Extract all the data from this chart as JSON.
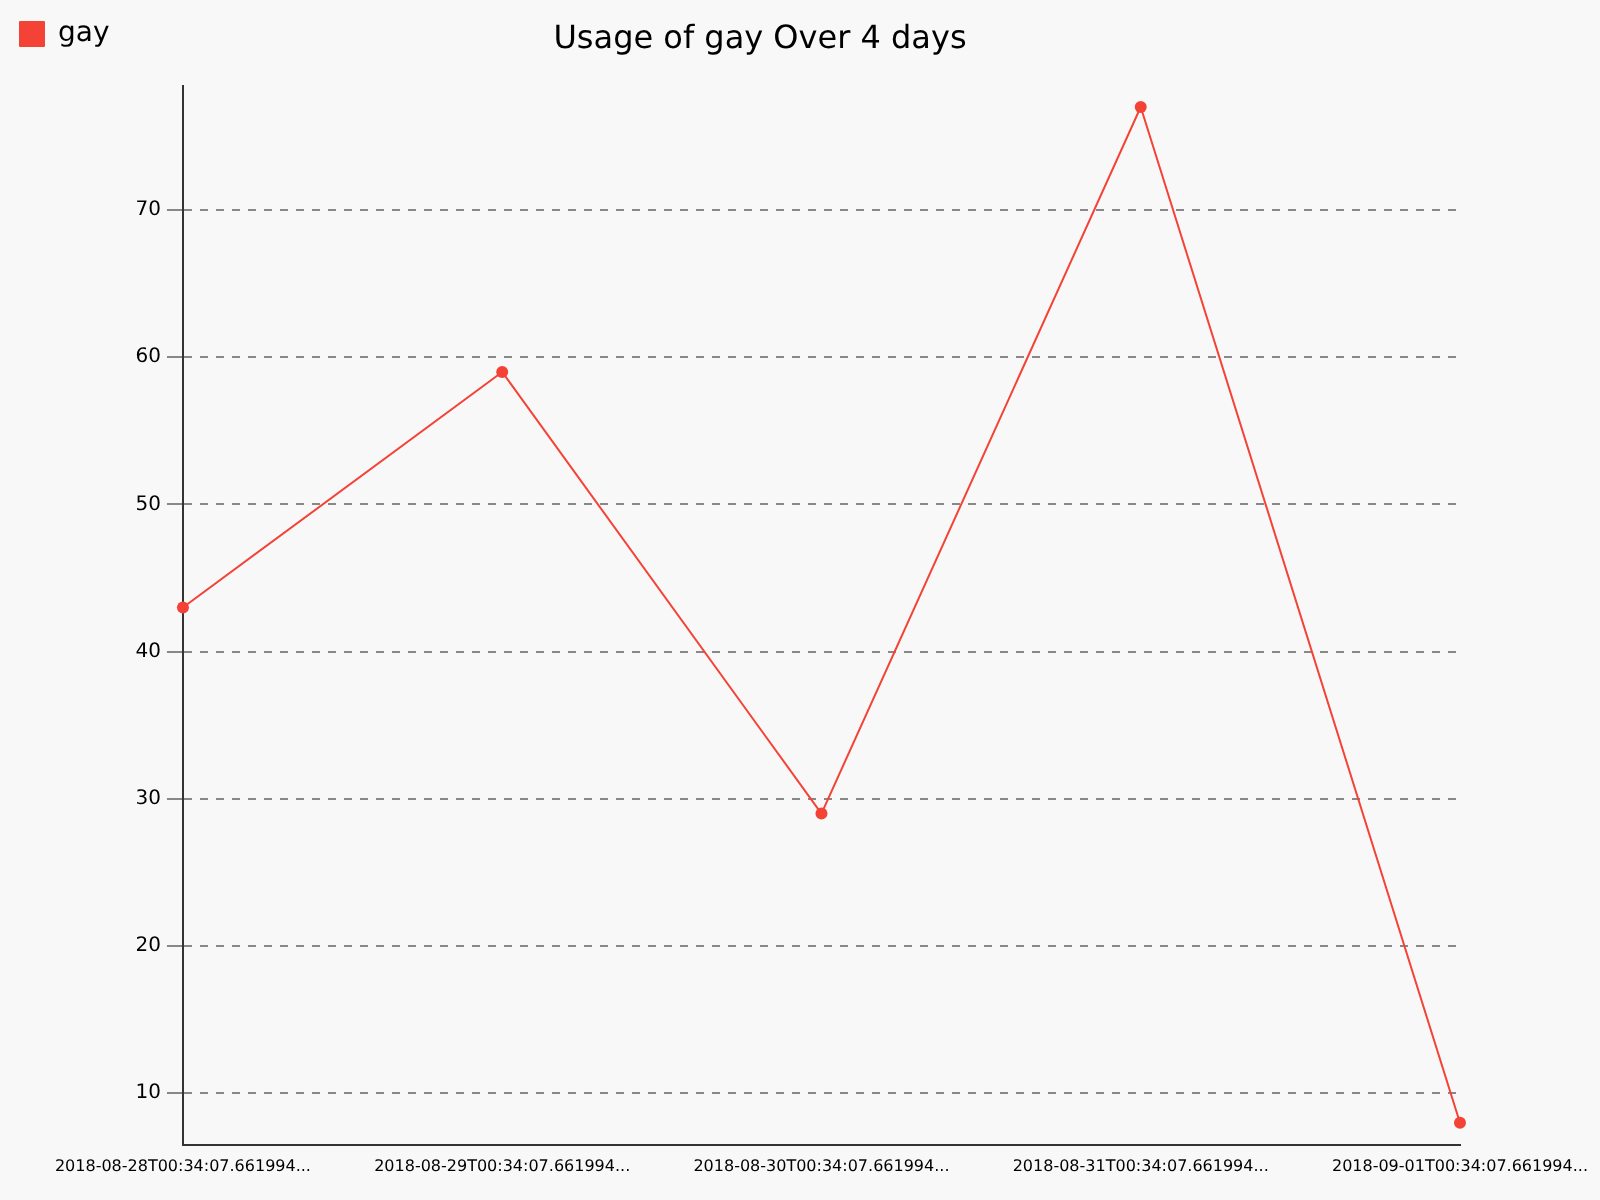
{
  "chart_data": {
    "type": "line",
    "title": "Usage of gay Over 4 days",
    "categories": [
      "2018-08-28T00:34:07.661994...",
      "2018-08-29T00:34:07.661994...",
      "2018-08-30T00:34:07.661994...",
      "2018-08-31T00:34:07.661994...",
      "2018-09-01T00:34:07.661994..."
    ],
    "series": [
      {
        "name": "gay",
        "color": "#f44336",
        "values": [
          43,
          59,
          29,
          77,
          8
        ]
      }
    ],
    "ylim": [
      6.5,
      78.4
    ],
    "yticks": [
      10,
      20,
      30,
      40,
      50,
      60,
      70
    ],
    "grid": "y",
    "legend": "top left",
    "marker": "circle",
    "line_style": "solid"
  }
}
